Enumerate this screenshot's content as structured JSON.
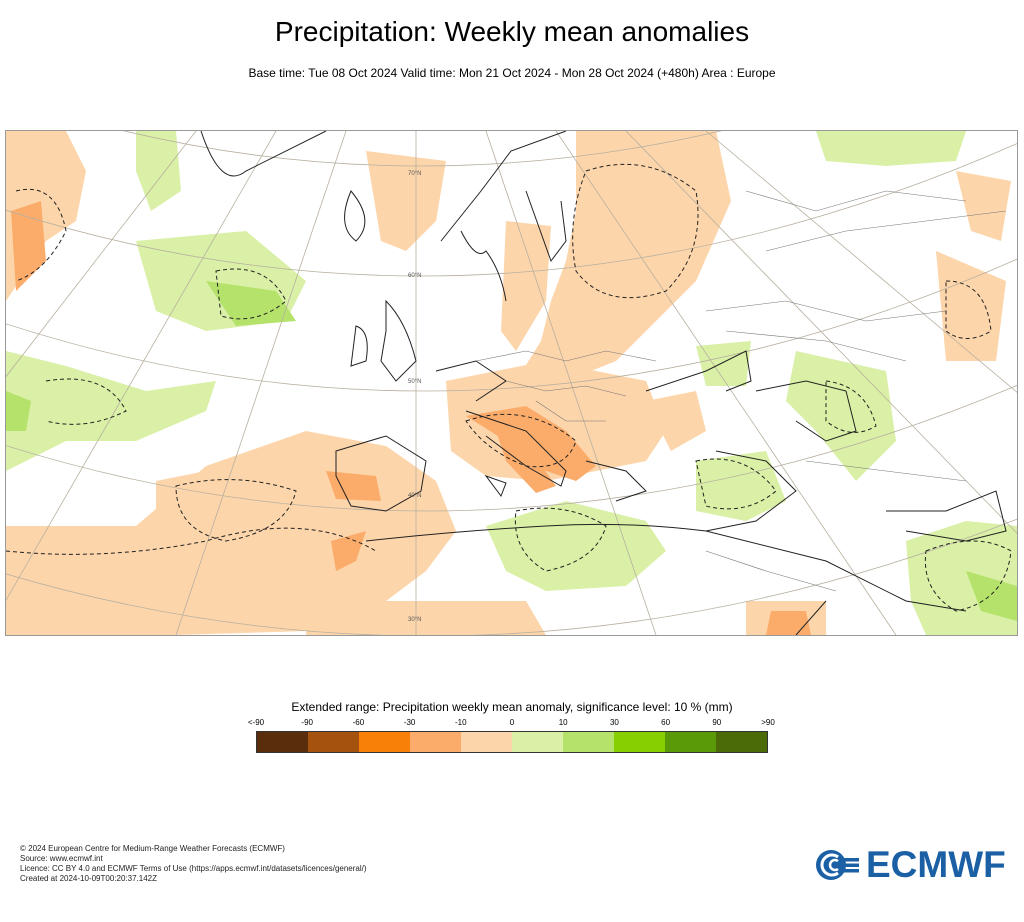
{
  "header": {
    "title": "Precipitation: Weekly mean anomalies",
    "subtitle": "Base time: Tue 08 Oct 2024 Valid time: Mon 21 Oct 2024 - Mon 28 Oct 2024 (+480h) Area : Europe"
  },
  "map": {
    "region": "Europe",
    "lat_labels": [
      "70°N",
      "60°N",
      "50°N",
      "40°N",
      "30°N"
    ],
    "colors": {
      "land_outline": "#222222",
      "grid": "#b8b0a0",
      "dry_light": "#fdd5aa",
      "dry_mid": "#fbac6b",
      "wet_light": "#d9f0a6",
      "wet_mid": "#b4e26a"
    }
  },
  "legend": {
    "title": "Extended range: Precipitation weekly mean anomaly, significance level: 10 % (mm)",
    "ticks": [
      "<-90",
      "-90",
      "-60",
      "-30",
      "-10",
      "0",
      "10",
      "30",
      "60",
      "90",
      ">90"
    ],
    "colors": [
      "#5a2d0c",
      "#a6520f",
      "#f98008",
      "#fbac6b",
      "#fdd5aa",
      "#d9f0a6",
      "#b4e26a",
      "#87cf00",
      "#5a9a08",
      "#4a6b08"
    ]
  },
  "footer": {
    "lines": [
      "© 2024 European Centre for Medium-Range Weather Forecasts (ECMWF)",
      "Source: www.ecmwf.int",
      "Licence: CC BY 4.0 and ECMWF Terms of Use (https://apps.ecmwf.int/datasets/licences/general/)",
      "Created at 2024-10-09T00:20:37.142Z"
    ]
  },
  "logo": {
    "text": "ECMWF",
    "color": "#1b5fa5"
  }
}
